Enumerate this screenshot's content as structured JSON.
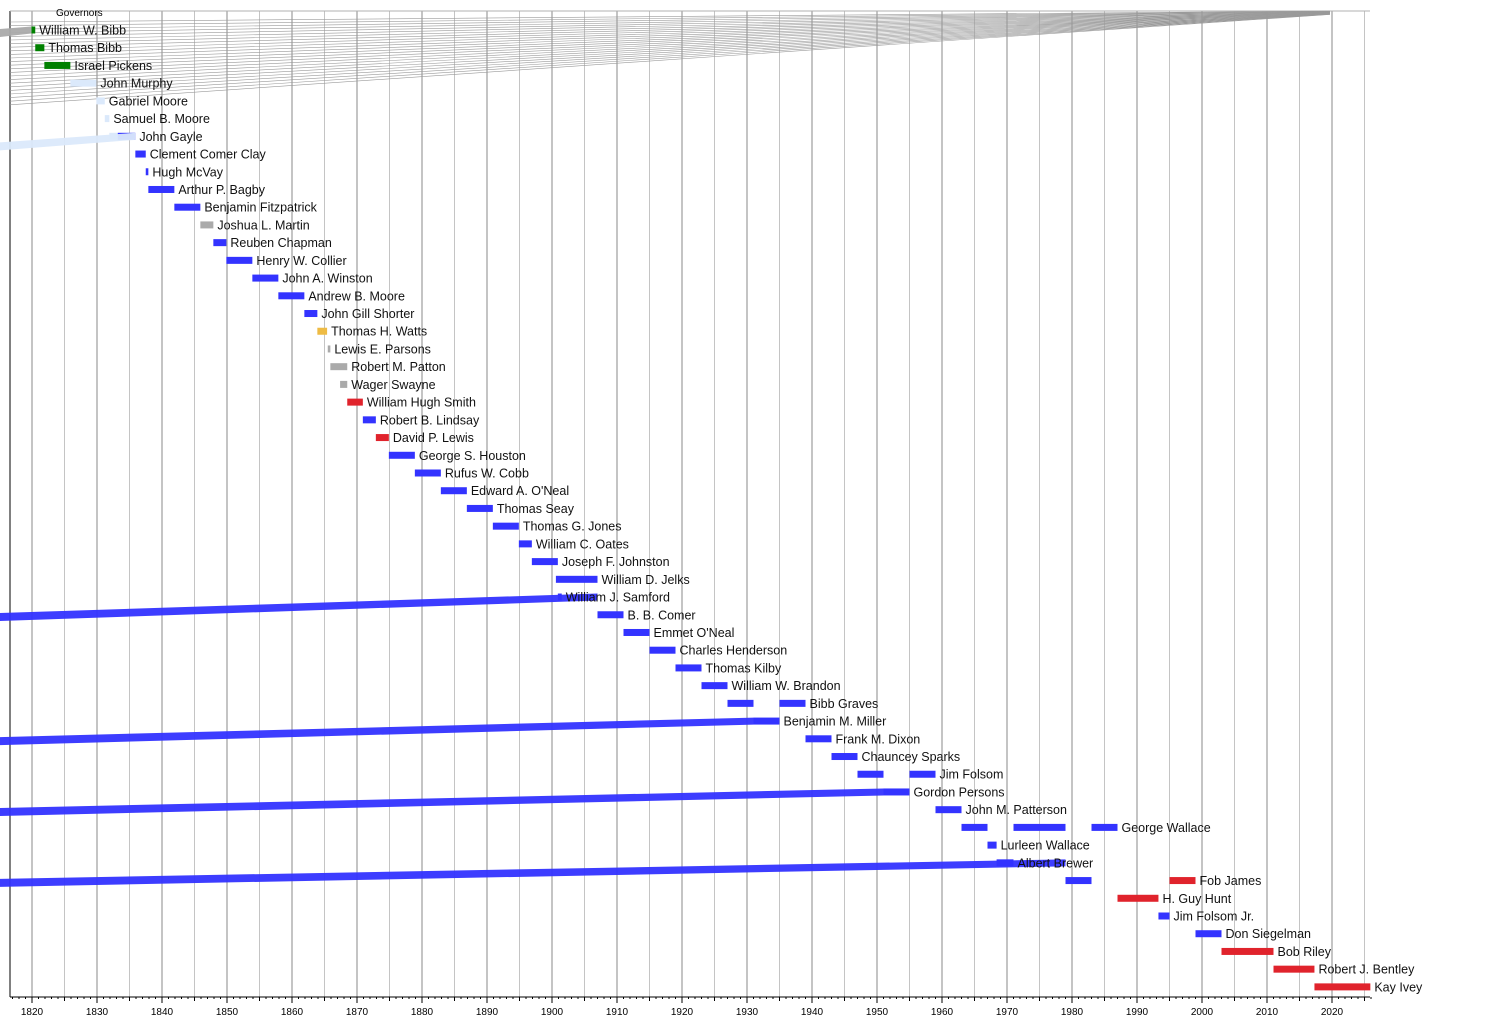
{
  "chart_data": {
    "type": "timeline",
    "title": "Governors",
    "xlim": [
      1816,
      2027
    ],
    "x_ticks": [
      1820,
      1830,
      1840,
      1850,
      1860,
      1870,
      1880,
      1890,
      1900,
      1910,
      1920,
      1930,
      1940,
      1950,
      1960,
      1970,
      1980,
      1990,
      2000,
      2010,
      2020
    ],
    "grid": true,
    "colors": {
      "Democratic-Republican": "#008000",
      "Jacksonian Democrat": "#dbe9fb",
      "Democratic": "#3333ff",
      "Whig": "#aaaaaa",
      "Confederate": "#eebb44",
      "Republican": "#e0232c"
    },
    "terms": [
      {
        "name": "William W. Bibb",
        "start": 1819.9,
        "end": 1820.5,
        "party": "Democratic-Republican"
      },
      {
        "name": "Thomas Bibb",
        "start": 1820.5,
        "end": 1821.9,
        "party": "Democratic-Republican"
      },
      {
        "name": "Israel Pickens",
        "start": 1821.9,
        "end": 1825.9,
        "party": "Democratic-Republican"
      },
      {
        "name": "John Murphy",
        "start": 1825.9,
        "end": 1829.9,
        "party": "Jacksonian Democrat"
      },
      {
        "name": "Gabriel Moore",
        "start": 1829.9,
        "end": 1831.2,
        "party": "Jacksonian Democrat"
      },
      {
        "name": "Samuel B. Moore",
        "start": 1831.2,
        "end": 1831.9,
        "party": "Jacksonian Democrat"
      },
      {
        "name": "John Gayle",
        "start": 1831.9,
        "end": 1835.9,
        "party": "Jacksonian Democrat"
      },
      {
        "name": "John Gayle",
        "start": 1833.2,
        "end": 1835.9,
        "party": "Democratic"
      },
      {
        "name": "Clement Comer Clay",
        "start": 1835.9,
        "end": 1837.5,
        "party": "Democratic"
      },
      {
        "name": "Hugh McVay",
        "start": 1837.5,
        "end": 1837.9,
        "party": "Democratic"
      },
      {
        "name": "Arthur P. Bagby",
        "start": 1837.9,
        "end": 1841.9,
        "party": "Democratic"
      },
      {
        "name": "Benjamin Fitzpatrick",
        "start": 1841.9,
        "end": 1845.9,
        "party": "Democratic"
      },
      {
        "name": "Joshua L. Martin",
        "start": 1845.9,
        "end": 1847.9,
        "party": "Whig"
      },
      {
        "name": "Reuben Chapman",
        "start": 1847.9,
        "end": 1849.9,
        "party": "Democratic"
      },
      {
        "name": "Henry W. Collier",
        "start": 1849.9,
        "end": 1853.9,
        "party": "Democratic"
      },
      {
        "name": "John A. Winston",
        "start": 1853.9,
        "end": 1857.9,
        "party": "Democratic"
      },
      {
        "name": "Andrew B. Moore",
        "start": 1857.9,
        "end": 1861.9,
        "party": "Democratic"
      },
      {
        "name": "John Gill Shorter",
        "start": 1861.9,
        "end": 1863.9,
        "party": "Democratic"
      },
      {
        "name": "Thomas H. Watts",
        "start": 1863.9,
        "end": 1865.4,
        "party": "Confederate"
      },
      {
        "name": "Lewis E. Parsons",
        "start": 1865.5,
        "end": 1865.9,
        "party": "Whig"
      },
      {
        "name": "Robert M. Patton",
        "start": 1865.9,
        "end": 1868.5,
        "party": "Whig"
      },
      {
        "name": "Wager Swayne",
        "start": 1867.4,
        "end": 1868.5,
        "party": "Whig"
      },
      {
        "name": "William Hugh Smith",
        "start": 1868.5,
        "end": 1870.9,
        "party": "Republican"
      },
      {
        "name": "Robert B. Lindsay",
        "start": 1870.9,
        "end": 1872.9,
        "party": "Democratic"
      },
      {
        "name": "David P. Lewis",
        "start": 1872.9,
        "end": 1874.9,
        "party": "Republican"
      },
      {
        "name": "George S. Houston",
        "start": 1874.9,
        "end": 1878.9,
        "party": "Democratic"
      },
      {
        "name": "Rufus W. Cobb",
        "start": 1878.9,
        "end": 1882.9,
        "party": "Democratic"
      },
      {
        "name": "Edward A. O'Neal",
        "start": 1882.9,
        "end": 1886.9,
        "party": "Democratic"
      },
      {
        "name": "Thomas Seay",
        "start": 1886.9,
        "end": 1890.9,
        "party": "Democratic"
      },
      {
        "name": "Thomas G. Jones",
        "start": 1890.9,
        "end": 1894.9,
        "party": "Democratic"
      },
      {
        "name": "William C. Oates",
        "start": 1894.9,
        "end": 1896.9,
        "party": "Democratic"
      },
      {
        "name": "Joseph F. Johnston",
        "start": 1896.9,
        "end": 1900.9,
        "party": "Democratic"
      },
      {
        "name": "William D. Jelks",
        "start": 1900.6,
        "end": 1907.0,
        "party": "Democratic"
      },
      {
        "name": "William J. Samford",
        "start": 1900.9,
        "end": 1901.5,
        "party": "Democratic"
      },
      {
        "name": "B. B. Comer",
        "start": 1907.0,
        "end": 1911.0,
        "party": "Democratic"
      },
      {
        "name": "Emmet O'Neal",
        "start": 1911.0,
        "end": 1915.0,
        "party": "Democratic"
      },
      {
        "name": "Charles Henderson",
        "start": 1915.0,
        "end": 1919.0,
        "party": "Democratic"
      },
      {
        "name": "Thomas Kilby",
        "start": 1919.0,
        "end": 1923.0,
        "party": "Democratic"
      },
      {
        "name": "William W. Brandon",
        "start": 1923.0,
        "end": 1927.0,
        "party": "Democratic"
      },
      {
        "name": "Bibb Graves",
        "start": 1927.0,
        "end": 1931.0,
        "party": "Democratic"
      },
      {
        "name": "Bibb Graves",
        "start": 1935.0,
        "end": 1939.0,
        "party": "Democratic"
      },
      {
        "name": "Benjamin M. Miller",
        "start": 1931.0,
        "end": 1935.0,
        "party": "Democratic"
      },
      {
        "name": "Frank M. Dixon",
        "start": 1939.0,
        "end": 1943.0,
        "party": "Democratic"
      },
      {
        "name": "Chauncey Sparks",
        "start": 1943.0,
        "end": 1947.0,
        "party": "Democratic"
      },
      {
        "name": "Jim Folsom",
        "start": 1947.0,
        "end": 1951.0,
        "party": "Democratic"
      },
      {
        "name": "Jim Folsom",
        "start": 1955.0,
        "end": 1959.0,
        "party": "Democratic"
      },
      {
        "name": "Gordon Persons",
        "start": 1951.0,
        "end": 1955.0,
        "party": "Democratic"
      },
      {
        "name": "John M. Patterson",
        "start": 1959.0,
        "end": 1963.0,
        "party": "Democratic"
      },
      {
        "name": "George Wallace",
        "start": 1963.0,
        "end": 1967.0,
        "party": "Democratic"
      },
      {
        "name": "George Wallace",
        "start": 1971.0,
        "end": 1979.0,
        "party": "Democratic"
      },
      {
        "name": "George Wallace",
        "start": 1983.0,
        "end": 1987.0,
        "party": "Democratic"
      },
      {
        "name": "Lurleen Wallace",
        "start": 1967.0,
        "end": 1968.4,
        "party": "Democratic"
      },
      {
        "name": "Albert Brewer",
        "start": 1968.4,
        "end": 1971.0,
        "party": "Democratic"
      },
      {
        "name": "Fob James",
        "start": 1979.0,
        "end": 1983.0,
        "party": "Democratic"
      },
      {
        "name": "Fob James",
        "start": 1995.0,
        "end": 1999.0,
        "party": "Republican"
      },
      {
        "name": "H. Guy Hunt",
        "start": 1987.0,
        "end": 1993.3,
        "party": "Republican"
      },
      {
        "name": "Jim Folsom Jr.",
        "start": 1993.3,
        "end": 1995.0,
        "party": "Democratic"
      },
      {
        "name": "Don Siegelman",
        "start": 1999.0,
        "end": 2003.0,
        "party": "Democratic"
      },
      {
        "name": "Bob Riley",
        "start": 2003.0,
        "end": 2011.0,
        "party": "Republican"
      },
      {
        "name": "Robert J. Bentley",
        "start": 2011.0,
        "end": 2017.3,
        "party": "Republican"
      },
      {
        "name": "Kay Ivey",
        "start": 2017.3,
        "end": 2025.9,
        "party": "Republican"
      }
    ]
  }
}
